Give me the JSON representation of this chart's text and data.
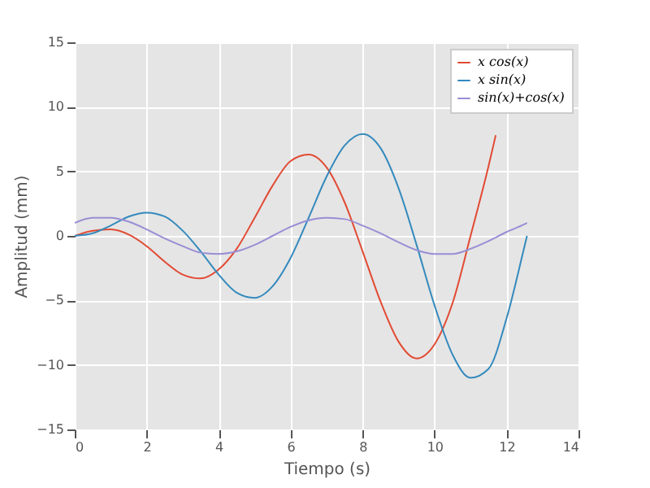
{
  "chart_data": {
    "type": "line",
    "xlabel": "Tiempo (s)",
    "ylabel": "Amplitud (mm)",
    "xlim": [
      0,
      14
    ],
    "ylim": [
      -15,
      15
    ],
    "xticks": [
      0,
      2,
      4,
      6,
      8,
      10,
      12,
      14
    ],
    "yticks": [
      -15,
      -10,
      -5,
      0,
      5,
      10,
      15
    ],
    "grid": true,
    "legend": "top right",
    "marker": "none",
    "line_style": "solid",
    "series": [
      {
        "name": "x cos(x)",
        "color": "#e24a33",
        "x": [
          0,
          0.5,
          1,
          1.5,
          2,
          2.5,
          3,
          3.5,
          4,
          4.5,
          5,
          5.5,
          6,
          6.5,
          7,
          7.5,
          8,
          8.5,
          9,
          9.5,
          10,
          10.5,
          11,
          11.5,
          11.7
        ],
        "values": [
          0,
          0.4,
          0.5,
          0.1,
          -0.8,
          -2,
          -3,
          -3.3,
          -2.6,
          -1,
          1.4,
          3.9,
          5.8,
          6.3,
          5.3,
          2.6,
          -1.2,
          -5.1,
          -8.2,
          -9.5,
          -8.4,
          -5.2,
          0,
          5.4,
          7.8
        ]
      },
      {
        "name": "x sin(x)",
        "color": "#348abd",
        "x": [
          0,
          0.5,
          1,
          1.5,
          2,
          2.5,
          3,
          3.5,
          4,
          4.5,
          5,
          5.5,
          6,
          6.5,
          7,
          7.5,
          8,
          8.5,
          9,
          9.5,
          10,
          10.5,
          11,
          11.5,
          12,
          12.5,
          12.57
        ],
        "values": [
          0,
          0.2,
          0.8,
          1.5,
          1.8,
          1.5,
          0.4,
          -1.2,
          -3,
          -4.4,
          -4.8,
          -3.9,
          -1.7,
          1.4,
          4.6,
          7,
          7.9,
          6.8,
          3.7,
          -0.7,
          -5.4,
          -9.2,
          -11,
          -10.3,
          -6.4,
          -0.8,
          0
        ]
      },
      {
        "name": "sin(x)+cos(x)",
        "color": "#988ed5",
        "x": [
          0,
          0.5,
          1,
          1.5,
          2,
          2.5,
          3,
          3.5,
          4,
          4.5,
          5,
          5.5,
          6,
          6.5,
          7,
          7.5,
          8,
          8.5,
          9,
          9.5,
          10,
          10.5,
          11,
          11.5,
          12,
          12.5,
          12.57
        ],
        "values": [
          1,
          1.4,
          1.4,
          1.1,
          0.5,
          -0.2,
          -0.8,
          -1.3,
          -1.4,
          -1.2,
          -0.7,
          0,
          0.7,
          1.2,
          1.4,
          1.3,
          0.8,
          0.2,
          -0.5,
          -1.1,
          -1.4,
          -1.4,
          -1,
          -0.4,
          0.3,
          0.9,
          1
        ]
      }
    ]
  }
}
